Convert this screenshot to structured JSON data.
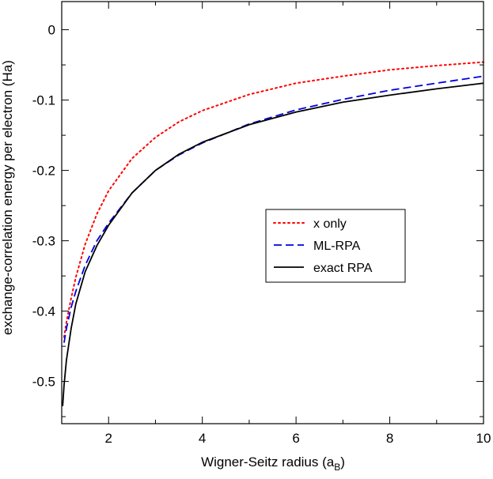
{
  "chart_data": {
    "type": "line",
    "xlabel": "Wigner-Seitz radius (a",
    "xlabel_subscript": "B",
    "xlabel_suffix": ")",
    "ylabel": "exchange-correlation energy per electron (Ha)",
    "xlim": [
      1,
      10
    ],
    "ylim": [
      -0.56,
      0.04
    ],
    "x_ticks": [
      2,
      4,
      6,
      8,
      10
    ],
    "x_tick_labels": [
      "2",
      "4",
      "6",
      "8",
      "10"
    ],
    "y_ticks": [
      0,
      -0.1,
      -0.2,
      -0.3,
      -0.4,
      -0.5
    ],
    "y_tick_labels": [
      "0",
      "-0.1",
      "-0.2",
      "-0.3",
      "-0.4",
      "-0.5"
    ],
    "grid": false,
    "legend_position": "center-right",
    "series": [
      {
        "name": "x only",
        "color": "#ff0000",
        "style": "dotted",
        "x": [
          1.05,
          1.1,
          1.2,
          1.3,
          1.5,
          1.75,
          2,
          2.5,
          3,
          3.5,
          4,
          5,
          6,
          7,
          8,
          9,
          10
        ],
        "y": [
          -0.437,
          -0.416,
          -0.382,
          -0.352,
          -0.305,
          -0.262,
          -0.229,
          -0.183,
          -0.153,
          -0.131,
          -0.115,
          -0.092,
          -0.076,
          -0.066,
          -0.057,
          -0.051,
          -0.046
        ]
      },
      {
        "name": "ML-RPA",
        "color": "#0000e0",
        "style": "dashed",
        "x": [
          1.05,
          1.1,
          1.2,
          1.3,
          1.5,
          1.75,
          2,
          2.5,
          3,
          3.5,
          4,
          5,
          6,
          7,
          8,
          9,
          10
        ],
        "y": [
          -0.445,
          -0.425,
          -0.395,
          -0.372,
          -0.335,
          -0.3,
          -0.275,
          -0.232,
          -0.2,
          -0.178,
          -0.161,
          -0.134,
          -0.114,
          -0.099,
          -0.086,
          -0.076,
          -0.066
        ]
      },
      {
        "name": "exact RPA",
        "color": "#000000",
        "style": "solid",
        "x": [
          1.02,
          1.05,
          1.1,
          1.2,
          1.3,
          1.5,
          1.75,
          2,
          2.5,
          3,
          3.5,
          4,
          5,
          6,
          7,
          8,
          9,
          10
        ],
        "y": [
          -0.535,
          -0.505,
          -0.47,
          -0.425,
          -0.39,
          -0.344,
          -0.307,
          -0.278,
          -0.232,
          -0.2,
          -0.177,
          -0.16,
          -0.135,
          -0.117,
          -0.103,
          -0.093,
          -0.084,
          -0.076
        ]
      }
    ]
  }
}
